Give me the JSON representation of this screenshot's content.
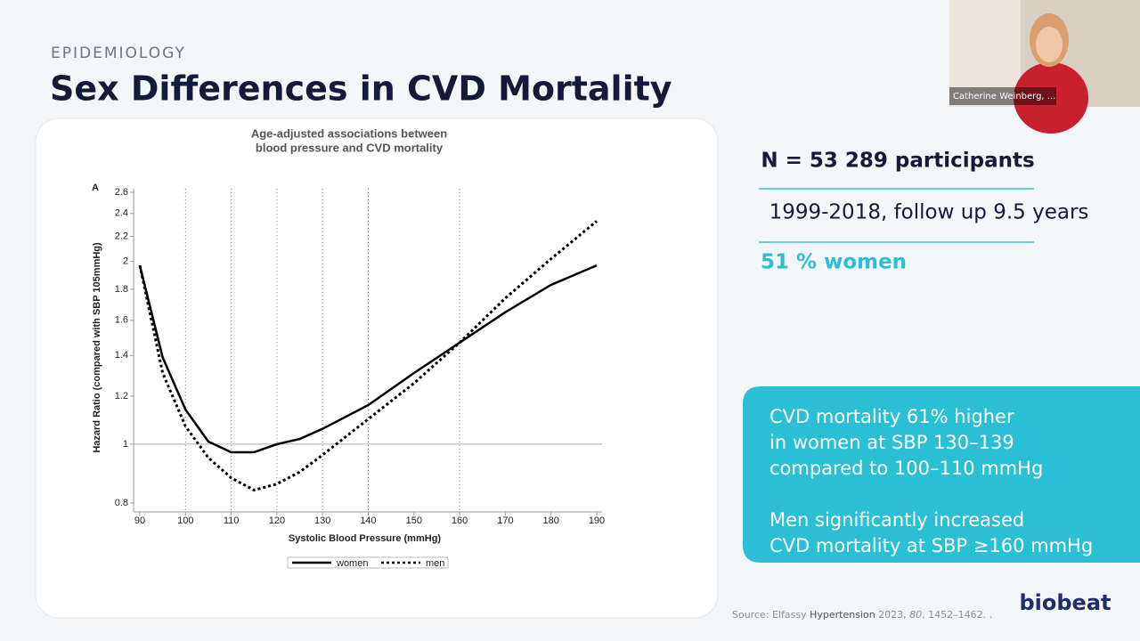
{
  "slide": {
    "kicker": "EPIDEMIOLOGY",
    "title": "Sex Differences in CVD Mortality",
    "facts": [
      "N = 53 289 participants",
      "1999-2018, follow up 9.5 years",
      "51 % women"
    ],
    "callout": [
      [
        "CVD mortality 61% higher",
        "in women at SBP 130–139",
        "compared to 100–110 mmHg"
      ],
      [
        "Men significantly increased",
        "CVD mortality at SBP ≥160 mmHg"
      ]
    ],
    "source": [
      "Source: Elfassy ",
      "Hypertension",
      " 2023, ",
      "80",
      ", 1452–1462. ."
    ],
    "logo": "biobeat"
  },
  "video": {
    "name": "Catherine Weinberg, ..."
  },
  "chart_data": {
    "type": "line",
    "title": [
      "Age-adjusted associations between",
      "blood pressure and CVD mortality"
    ],
    "panel": "A",
    "x_label": "Systolic Blood Pressure (mmHg)",
    "y_label": "Hazard Ratio (compared with SBP 105mmHg)",
    "x": [
      90,
      95,
      100,
      105,
      110,
      115,
      120,
      125,
      130,
      140,
      150,
      160,
      170,
      180,
      190
    ],
    "series": [
      {
        "name": "women",
        "color": "#000000",
        "dash": false,
        "values": [
          1.97,
          1.39,
          1.14,
          1.01,
          0.97,
          0.97,
          1.0,
          1.02,
          1.06,
          1.16,
          1.31,
          1.47,
          1.65,
          1.83,
          1.97
        ]
      },
      {
        "name": "men",
        "color": "#000000",
        "dash": true,
        "values": [
          1.97,
          1.31,
          1.07,
          0.95,
          0.88,
          0.84,
          0.86,
          0.9,
          0.96,
          1.1,
          1.26,
          1.47,
          1.74,
          2.02,
          2.33
        ]
      }
    ],
    "xlim": [
      90,
      190
    ],
    "xticks": [
      90,
      100,
      110,
      120,
      130,
      140,
      150,
      160,
      170,
      180,
      190
    ],
    "ylim": [
      0.8,
      2.6
    ],
    "yticks": [
      0.8,
      1,
      1.2,
      1.4,
      1.6,
      1.8,
      2,
      2.2,
      2.4,
      2.6
    ],
    "log_y": true,
    "reference_line": 1,
    "vlines": [
      100,
      110,
      120,
      130,
      140,
      160
    ]
  }
}
